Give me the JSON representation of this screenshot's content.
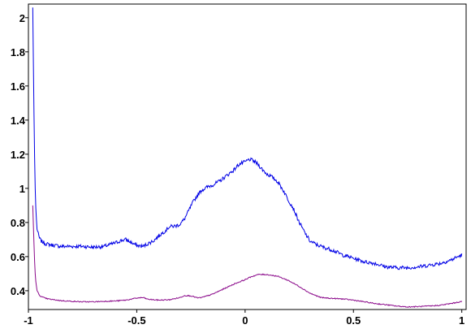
{
  "chart_data": {
    "type": "line",
    "title": "",
    "xlabel": "",
    "ylabel": "",
    "xlim": [
      -1.0,
      1.02
    ],
    "ylim": [
      0.29,
      2.08
    ],
    "grid": false,
    "x_ticks": [
      "-1",
      "-0.5",
      "0",
      "0.5",
      "1"
    ],
    "x_tick_values": [
      -1,
      -0.5,
      0,
      0.5,
      1
    ],
    "y_ticks": [
      "0.4",
      "0.6",
      "0.8",
      "1",
      "1.2",
      "1.4",
      "1.6",
      "1.8",
      "2"
    ],
    "y_tick_values": [
      0.4,
      0.6,
      0.8,
      1.0,
      1.2,
      1.4,
      1.6,
      1.8,
      2.0
    ],
    "series": [
      {
        "color": "#0000e6",
        "x": [
          -0.98,
          -0.975,
          -0.97,
          -0.965,
          -0.96,
          -0.95,
          -0.94,
          -0.92,
          -0.9,
          -0.85,
          -0.8,
          -0.75,
          -0.7,
          -0.65,
          -0.6,
          -0.57,
          -0.55,
          -0.53,
          -0.5,
          -0.47,
          -0.45,
          -0.42,
          -0.4,
          -0.37,
          -0.35,
          -0.32,
          -0.3,
          -0.28,
          -0.26,
          -0.24,
          -0.22,
          -0.2,
          -0.17,
          -0.15,
          -0.12,
          -0.1,
          -0.08,
          -0.05,
          -0.03,
          0.0,
          0.02,
          0.04,
          0.06,
          0.08,
          0.1,
          0.12,
          0.15,
          0.18,
          0.2,
          0.22,
          0.25,
          0.28,
          0.3,
          0.33,
          0.36,
          0.4,
          0.45,
          0.5,
          0.55,
          0.6,
          0.65,
          0.7,
          0.75,
          0.8,
          0.85,
          0.9,
          0.95,
          1.0
        ],
        "values": [
          2.06,
          1.5,
          1.05,
          0.85,
          0.76,
          0.71,
          0.69,
          0.675,
          0.67,
          0.66,
          0.66,
          0.66,
          0.655,
          0.66,
          0.68,
          0.695,
          0.7,
          0.685,
          0.665,
          0.66,
          0.675,
          0.695,
          0.72,
          0.75,
          0.775,
          0.78,
          0.79,
          0.82,
          0.87,
          0.92,
          0.96,
          0.99,
          1.01,
          1.02,
          1.04,
          1.06,
          1.08,
          1.11,
          1.14,
          1.155,
          1.17,
          1.16,
          1.14,
          1.11,
          1.085,
          1.07,
          1.04,
          0.98,
          0.93,
          0.89,
          0.8,
          0.73,
          0.69,
          0.67,
          0.655,
          0.64,
          0.61,
          0.59,
          0.57,
          0.56,
          0.54,
          0.535,
          0.535,
          0.54,
          0.55,
          0.56,
          0.58,
          0.61
        ]
      },
      {
        "color": "#8b0a8b",
        "x": [
          -0.98,
          -0.975,
          -0.97,
          -0.965,
          -0.96,
          -0.95,
          -0.94,
          -0.92,
          -0.9,
          -0.85,
          -0.8,
          -0.75,
          -0.7,
          -0.65,
          -0.6,
          -0.55,
          -0.5,
          -0.47,
          -0.45,
          -0.4,
          -0.35,
          -0.3,
          -0.28,
          -0.25,
          -0.22,
          -0.2,
          -0.15,
          -0.1,
          -0.05,
          0.0,
          0.03,
          0.06,
          0.1,
          0.15,
          0.2,
          0.25,
          0.3,
          0.35,
          0.4,
          0.45,
          0.5,
          0.55,
          0.6,
          0.65,
          0.7,
          0.75,
          0.8,
          0.85,
          0.9,
          0.95,
          1.0
        ],
        "values": [
          0.9,
          0.7,
          0.52,
          0.44,
          0.4,
          0.375,
          0.365,
          0.355,
          0.35,
          0.342,
          0.338,
          0.335,
          0.335,
          0.338,
          0.34,
          0.345,
          0.357,
          0.36,
          0.35,
          0.345,
          0.347,
          0.36,
          0.372,
          0.37,
          0.358,
          0.36,
          0.38,
          0.41,
          0.44,
          0.465,
          0.483,
          0.495,
          0.495,
          0.485,
          0.46,
          0.425,
          0.385,
          0.36,
          0.355,
          0.352,
          0.345,
          0.335,
          0.325,
          0.318,
          0.31,
          0.305,
          0.307,
          0.31,
          0.315,
          0.325,
          0.337
        ]
      }
    ]
  }
}
